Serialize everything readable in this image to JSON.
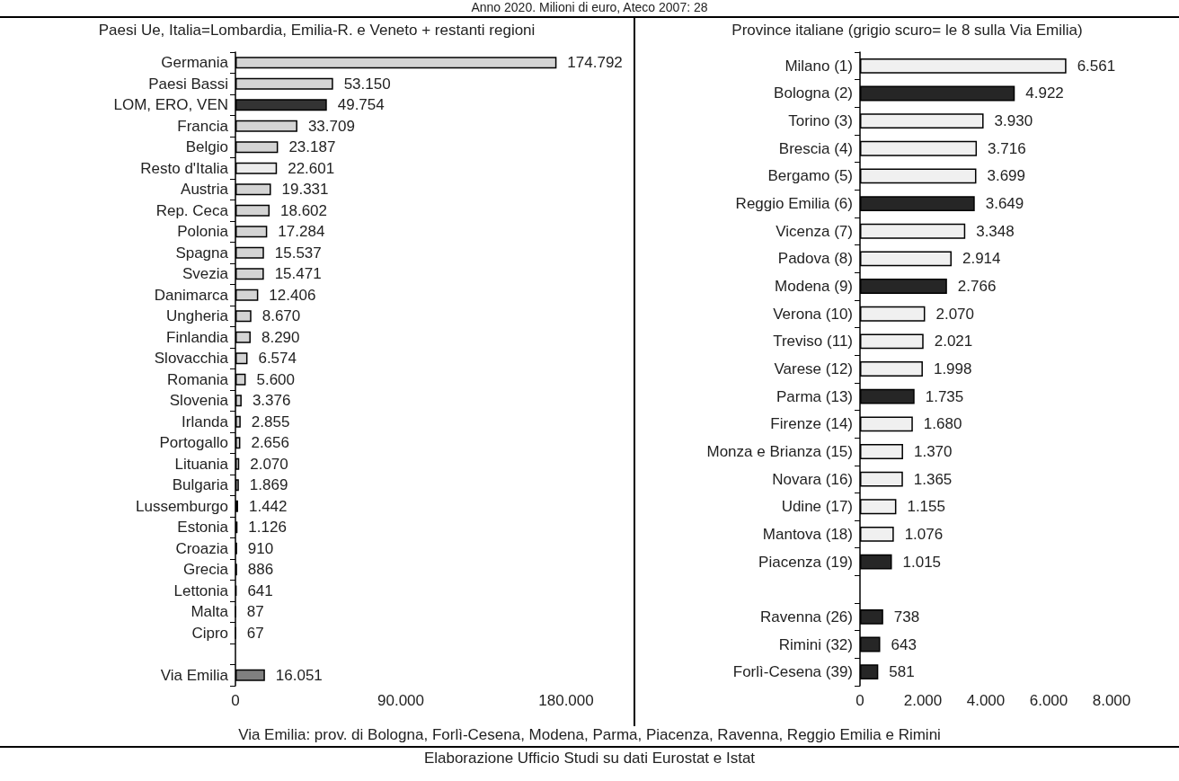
{
  "chart_data": [
    {
      "type": "bar",
      "orientation": "horizontal",
      "title": "Anno 2020. Milioni di euro, Ateco 2007: 28",
      "subtitle": "Paesi Ue, Italia=Lombardia, Emilia-R. e Veneto + restanti regioni",
      "categories": [
        "Germania",
        "Paesi Bassi",
        "LOM, ERO, VEN",
        "Francia",
        "Belgio",
        "Resto d'Italia",
        "Austria",
        "Rep. Ceca",
        "Polonia",
        "Spagna",
        "Svezia",
        "Danimarca",
        "Ungheria",
        "Finlandia",
        "Slovacchia",
        "Romania",
        "Slovenia",
        "Irlanda",
        "Portogallo",
        "Lituania",
        "Bulgaria",
        "Lussemburgo",
        "Estonia",
        "Croazia",
        "Grecia",
        "Lettonia",
        "Malta",
        "Cipro",
        null,
        "Via Emilia"
      ],
      "values": [
        174792,
        53150,
        49754,
        33709,
        23187,
        22601,
        19331,
        18602,
        17284,
        15537,
        15471,
        12406,
        8670,
        8290,
        6574,
        5600,
        3376,
        2855,
        2656,
        2070,
        1869,
        1442,
        1126,
        910,
        886,
        641,
        87,
        67,
        null,
        16051
      ],
      "colors": [
        "#d4d4d4",
        "#d4d4d4",
        "#333333",
        "#d4d4d4",
        "#d4d4d4",
        "#ececec",
        "#d4d4d4",
        "#d4d4d4",
        "#d4d4d4",
        "#d4d4d4",
        "#d4d4d4",
        "#d4d4d4",
        "#d4d4d4",
        "#d4d4d4",
        "#d4d4d4",
        "#d4d4d4",
        "#d4d4d4",
        "#d4d4d4",
        "#d4d4d4",
        "#d4d4d4",
        "#d4d4d4",
        "#d4d4d4",
        "#d4d4d4",
        "#d4d4d4",
        "#d4d4d4",
        "#d4d4d4",
        "#d4d4d4",
        "#d4d4d4",
        null,
        "#808080"
      ],
      "xlim": [
        0,
        180000
      ],
      "xticks": [
        0,
        {
          "value": 90000,
          "label": "90.000"
        },
        {
          "value": 180000,
          "label": "180.000"
        }
      ],
      "value_labels": [
        "174.792",
        "53.150",
        "49.754",
        "33.709",
        "23.187",
        "22.601",
        "19.331",
        "18.602",
        "17.284",
        "15.537",
        "15.471",
        "12.406",
        "8.670",
        "8.290",
        "6.574",
        "5.600",
        "3.376",
        "2.855",
        "2.656",
        "2.070",
        "1.869",
        "1.442",
        "1.126",
        "910",
        "886",
        "641",
        "87",
        "67",
        null,
        "16.051"
      ],
      "annotations": [
        "Via Emilia: prov. di Bologna, Forlì-Cesena, Modena, Parma, Piacenza, Ravenna, Reggio Emilia e Rimini",
        "Elaborazione Ufficio Studi su dati Eurostat e Istat"
      ]
    },
    {
      "type": "bar",
      "orientation": "horizontal",
      "subtitle": "Province italiane (grigio scuro= le 8 sulla Via Emilia)",
      "categories": [
        "Milano (1)",
        "Bologna (2)",
        "Torino (3)",
        "Brescia (4)",
        "Bergamo (5)",
        "Reggio Emilia (6)",
        "Vicenza (7)",
        "Padova (8)",
        "Modena (9)",
        "Verona (10)",
        "Treviso (11)",
        "Varese (12)",
        "Parma (13)",
        "Firenze (14)",
        "Monza e Brianza (15)",
        "Novara (16)",
        "Udine (17)",
        "Mantova (18)",
        "Piacenza (19)",
        null,
        "Ravenna (26)",
        "Rimini (32)",
        "Forlì-Cesena (39)"
      ],
      "values": [
        6561,
        4922,
        3930,
        3716,
        3699,
        3649,
        3348,
        2914,
        2766,
        2070,
        2021,
        1998,
        1735,
        1680,
        1370,
        1365,
        1155,
        1076,
        1015,
        null,
        738,
        643,
        581
      ],
      "colors": [
        "#f0f0f0",
        "#262626",
        "#f0f0f0",
        "#f0f0f0",
        "#f0f0f0",
        "#262626",
        "#f0f0f0",
        "#f0f0f0",
        "#262626",
        "#f0f0f0",
        "#f0f0f0",
        "#f0f0f0",
        "#262626",
        "#f0f0f0",
        "#f0f0f0",
        "#f0f0f0",
        "#f0f0f0",
        "#f0f0f0",
        "#262626",
        null,
        "#262626",
        "#262626",
        "#262626"
      ],
      "xlim": [
        0,
        8000
      ],
      "xticks": [
        0,
        {
          "value": 2000,
          "label": "2.000"
        },
        {
          "value": 4000,
          "label": "4.000"
        },
        {
          "value": 6000,
          "label": "6.000"
        },
        {
          "value": 8000,
          "label": "8.000"
        }
      ],
      "value_labels": [
        "6.561",
        "4.922",
        "3.930",
        "3.716",
        "3.699",
        "3.649",
        "3.348",
        "2.914",
        "2.766",
        "2.070",
        "2.021",
        "1.998",
        "1.735",
        "1.680",
        "1.370",
        "1.365",
        "1.155",
        "1.076",
        "1.015",
        null,
        "738",
        "643",
        "581"
      ]
    }
  ]
}
